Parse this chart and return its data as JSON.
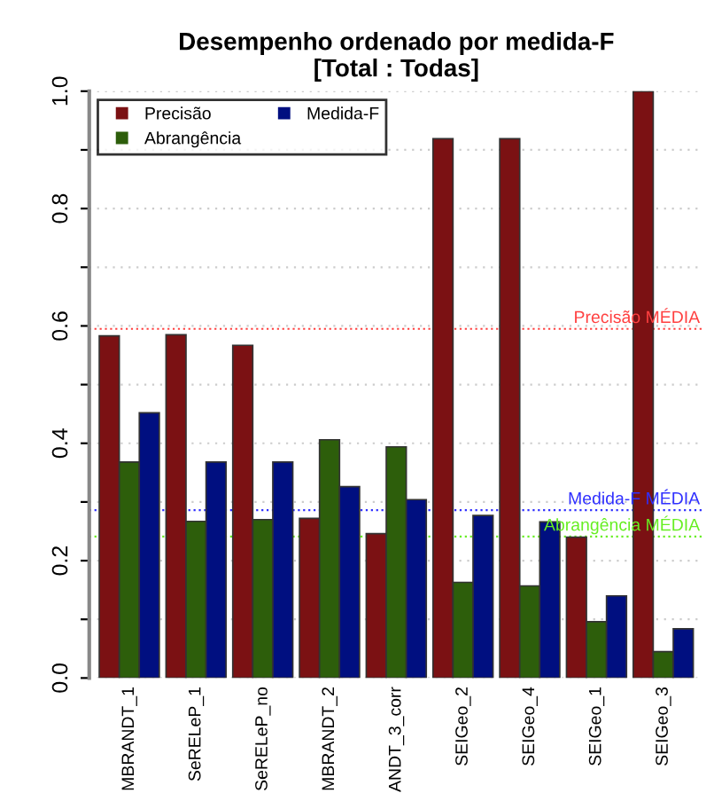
{
  "chart_data": {
    "type": "bar",
    "title": "Desempenho ordenado por medida-F\n[Total : Todas]",
    "categories": [
      "MBRANDT_1",
      "SeRELeP_1",
      "SeRELeP_no",
      "MBRANDT_2",
      "ANDT_3_corr",
      "SEIGeo_2",
      "SEIGeo_4",
      "SEIGeo_1",
      "SEIGeo_3"
    ],
    "series": [
      {
        "name": "Precisão",
        "color": "#7b1113",
        "values": [
          0.583,
          0.585,
          0.567,
          0.272,
          0.246,
          0.919,
          0.919,
          0.24,
          1.0
        ]
      },
      {
        "name": "Abrangência",
        "color": "#2d5e0b",
        "values": [
          0.368,
          0.267,
          0.27,
          0.406,
          0.394,
          0.163,
          0.157,
          0.096,
          0.045
        ]
      },
      {
        "name": "Medida-F",
        "color": "#000f80",
        "values": [
          0.452,
          0.368,
          0.368,
          0.326,
          0.304,
          0.277,
          0.266,
          0.14,
          0.084
        ]
      }
    ],
    "ylim": [
      0,
      1.0
    ],
    "yticks": [
      {
        "value": 0,
        "label": "0.0"
      },
      {
        "value": 0.1,
        "label": null
      },
      0.2,
      {
        "value": 0.3,
        "label": null
      },
      0.4,
      {
        "value": 0.5,
        "label": null
      },
      0.6,
      {
        "value": 0.7,
        "label": null
      },
      0.8,
      {
        "value": 0.9,
        "label": null
      },
      {
        "value": 1,
        "label": "1.0"
      }
    ],
    "grid": "y",
    "legend": "top left",
    "ref_lines": [
      {
        "axis": "y",
        "value": 0.595,
        "label": "Precisão MÉDIA",
        "color": "#ff4040",
        "line_style": "dotted"
      },
      {
        "axis": "y",
        "value": 0.286,
        "label": "Medida-F MÉDIA",
        "color": "#3030ff",
        "line_style": "dotted"
      },
      {
        "axis": "y",
        "value": 0.241,
        "label": "Abrangência MÉDIA",
        "color": "#66ee22",
        "line_style": "dotted"
      }
    ]
  }
}
